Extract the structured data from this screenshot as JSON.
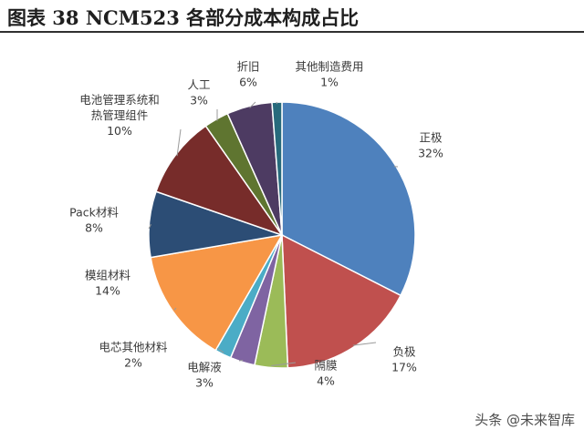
{
  "figure": {
    "title": "图表 38 NCM523 各部分成本构成占比",
    "watermark": "头条 @未来智库"
  },
  "chart_data": {
    "type": "pie",
    "title": "图表 38 NCM523 各部分成本构成占比",
    "slices": [
      {
        "label": [
          "正极"
        ],
        "percent": "32%",
        "value": 32.5,
        "color": "#4e81bd"
      },
      {
        "label": [
          "负极"
        ],
        "percent": "17%",
        "value": 16.8,
        "color": "#c0504e"
      },
      {
        "label": [
          "隔膜"
        ],
        "percent": "4%",
        "value": 4.0,
        "color": "#9bbb58"
      },
      {
        "label": [
          "电解液"
        ],
        "percent": "3%",
        "value": 3.0,
        "color": "#7f64a2"
      },
      {
        "label": [
          "电芯其他材料"
        ],
        "percent": "2%",
        "value": 2.0,
        "color": "#4bacc6"
      },
      {
        "label": [
          "模组材料"
        ],
        "percent": "14%",
        "value": 14.0,
        "color": "#f79646"
      },
      {
        "label": [
          "Pack材料"
        ],
        "percent": "8%",
        "value": 8.0,
        "color": "#2c4d75"
      },
      {
        "label": [
          "电池管理系统和",
          "热管理组件"
        ],
        "percent": "10%",
        "value": 10.0,
        "color": "#772c2a"
      },
      {
        "label": [
          "人工"
        ],
        "percent": "3%",
        "value": 3.0,
        "color": "#5f7530"
      },
      {
        "label": [
          "折旧"
        ],
        "percent": "6%",
        "value": 5.5,
        "color": "#4d3b62"
      },
      {
        "label": [
          "其他制造费用"
        ],
        "percent": "1%",
        "value": 1.2,
        "color": "#276a7c"
      }
    ]
  }
}
